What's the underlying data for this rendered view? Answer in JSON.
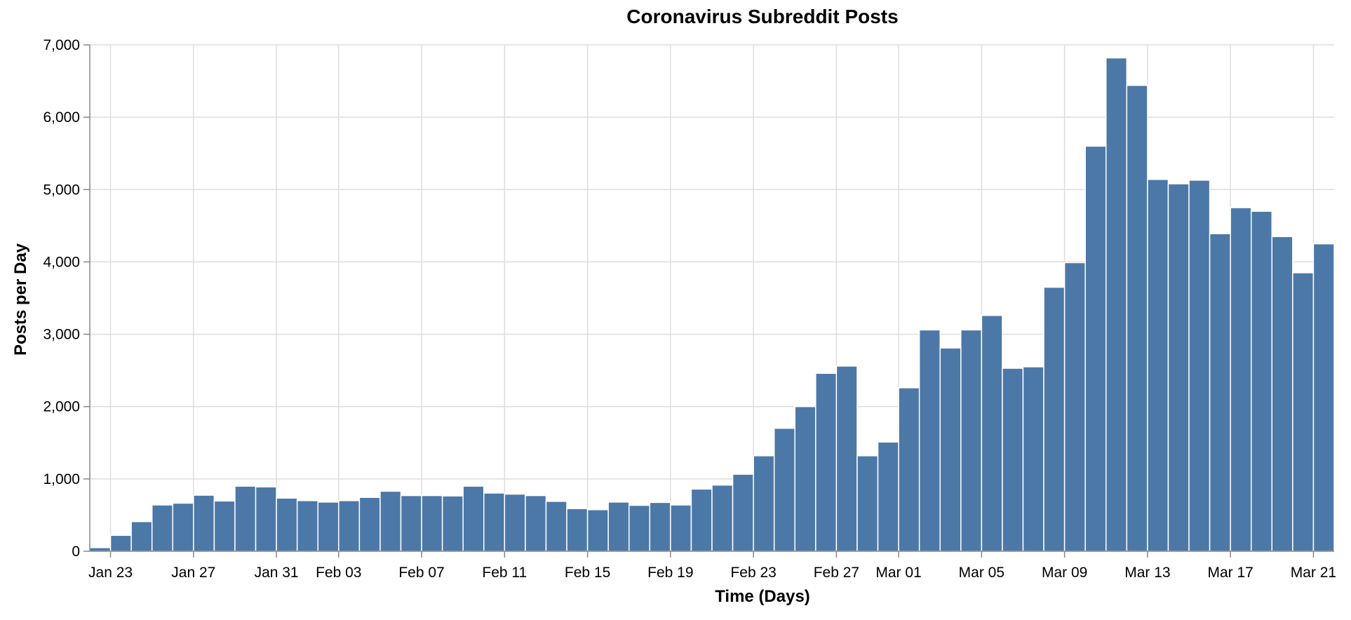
{
  "chart_data": {
    "type": "bar",
    "title": "Coronavirus Subreddit Posts",
    "xlabel": "Time (Days)",
    "ylabel": "Posts per Day",
    "ylim": [
      0,
      7000
    ],
    "yticks": [
      "0",
      "1,000",
      "2,000",
      "3,000",
      "4,000",
      "5,000",
      "6,000",
      "7,000"
    ],
    "grid": true,
    "bar_color": "#4c78a8",
    "start_date": "2020-01-22",
    "xtick_labels": [
      {
        "date": "2020-01-23",
        "label": "Jan 23"
      },
      {
        "date": "2020-01-27",
        "label": "Jan 27"
      },
      {
        "date": "2020-01-31",
        "label": "Jan 31"
      },
      {
        "date": "2020-02-03",
        "label": "Feb 03"
      },
      {
        "date": "2020-02-07",
        "label": "Feb 07"
      },
      {
        "date": "2020-02-11",
        "label": "Feb 11"
      },
      {
        "date": "2020-02-15",
        "label": "Feb 15"
      },
      {
        "date": "2020-02-19",
        "label": "Feb 19"
      },
      {
        "date": "2020-02-23",
        "label": "Feb 23"
      },
      {
        "date": "2020-02-27",
        "label": "Feb 27"
      },
      {
        "date": "2020-03-01",
        "label": "Mar 01"
      },
      {
        "date": "2020-03-05",
        "label": "Mar 05"
      },
      {
        "date": "2020-03-09",
        "label": "Mar 09"
      },
      {
        "date": "2020-03-13",
        "label": "Mar 13"
      },
      {
        "date": "2020-03-17",
        "label": "Mar 17"
      },
      {
        "date": "2020-03-21",
        "label": "Mar 21"
      }
    ],
    "values": [
      50,
      220,
      410,
      640,
      665,
      775,
      695,
      900,
      890,
      735,
      700,
      680,
      700,
      745,
      830,
      770,
      770,
      765,
      900,
      805,
      790,
      770,
      690,
      590,
      575,
      680,
      635,
      675,
      640,
      860,
      915,
      1065,
      1320,
      1700,
      2000,
      2460,
      2560,
      1320,
      1510,
      2260,
      3060,
      2810,
      3060,
      3260,
      2530,
      2550,
      3650,
      3990,
      5600,
      6820,
      6440,
      5140,
      5080,
      5130,
      4390,
      4750,
      4700,
      4350,
      3850,
      4250
    ]
  }
}
